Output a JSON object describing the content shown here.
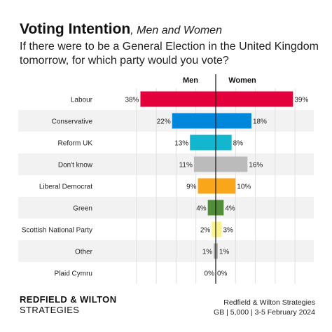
{
  "header": {
    "title": "Voting Intention",
    "subtitle": ", Men and Women",
    "question": "If there were to be a General Election in the United Kingdom tomorrow, for which party would you vote?"
  },
  "chart_data": {
    "type": "bar",
    "orientation": "diverging-horizontal",
    "categories": [
      "Labour",
      "Conservative",
      "Reform UK",
      "Don't know",
      "Liberal Democrat",
      "Green",
      "Scottish National Party",
      "Other",
      "Plaid Cymru"
    ],
    "series": [
      {
        "name": "Men",
        "values": [
          38,
          22,
          13,
          11,
          9,
          4,
          2,
          1,
          0
        ]
      },
      {
        "name": "Women",
        "values": [
          39,
          18,
          8,
          16,
          10,
          4,
          3,
          1,
          0
        ]
      }
    ],
    "value_labels": {
      "Men": [
        "38%",
        "22%",
        "13%",
        "11%",
        "9%",
        "4%",
        "2%",
        "1%",
        "0%"
      ],
      "Women": [
        "39%",
        "18%",
        "8%",
        "16%",
        "10%",
        "4%",
        "3%",
        "1%",
        "0%"
      ]
    },
    "colors": [
      "#e4003b",
      "#0087dc",
      "#12b6cf",
      "#bbbbbb",
      "#faa61a",
      "#528d3a",
      "#fdf38e",
      "#aaaaaa",
      "#3f8428"
    ],
    "grid": true
  },
  "footer": {
    "logo_line1": "REDFIELD & WILTON",
    "logo_line2": "STRATEGIES",
    "source_line1": "Redfield & Wilton Strategies",
    "source_line2": "GB | 5,000 | 3-5 February 2024"
  }
}
